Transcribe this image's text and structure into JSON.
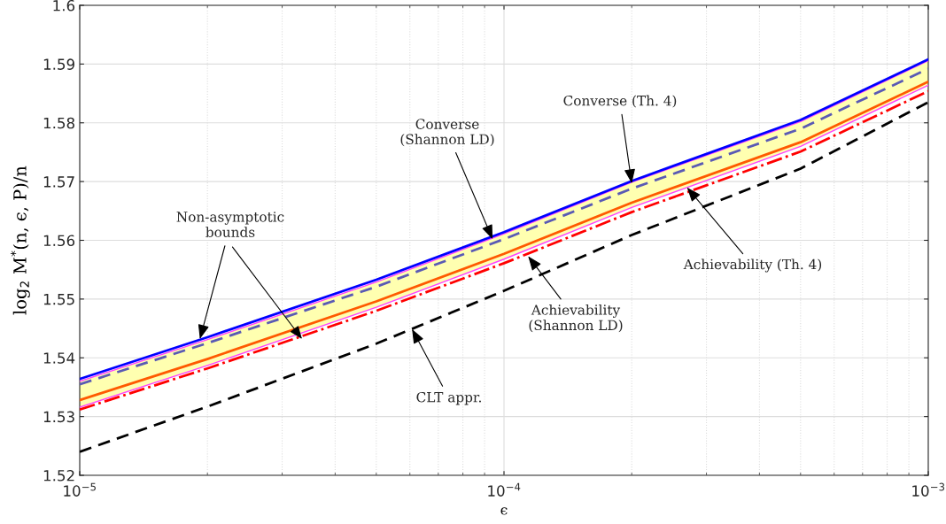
{
  "chart_data": {
    "type": "line",
    "xlabel": "ϵ",
    "ylabel": "log$_{2}$ M$^{*}$(n, ϵ, P)/n",
    "log": "x",
    "grid": true,
    "xlim": [
      1e-05,
      0.001
    ],
    "xticks": [
      {
        "value": 1e-05,
        "label": "10$^{−5}$"
      },
      {
        "value": 0.0001,
        "label": "10$^{−4}$"
      },
      {
        "value": 0.001,
        "label": "10$^{−3}$"
      }
    ],
    "ylim": [
      1.52,
      1.6
    ],
    "yticks": [
      1.52,
      1.53,
      1.54,
      1.55,
      1.56,
      1.57,
      1.58,
      1.59,
      1.6
    ],
    "x": [
      1e-05,
      2e-05,
      5e-05,
      0.0001,
      0.0002,
      0.0005,
      0.001
    ],
    "series": [
      {
        "color": "#ff40ff",
        "line_style": "solid",
        "values": [
          1.536,
          1.5431,
          1.5529,
          1.5611,
          1.5699,
          1.5802,
          1.5906
        ]
      },
      {
        "color": "#ff40ff",
        "line_style": "solid",
        "values": [
          1.5316,
          1.5387,
          1.5486,
          1.5568,
          1.5656,
          1.576,
          1.5864
        ]
      },
      {
        "color": "#0000ff",
        "line_style": "solid",
        "values": [
          1.5364,
          1.5435,
          1.5533,
          1.5614,
          1.5701,
          1.5805,
          1.5908
        ]
      },
      {
        "color": "#5a5ab4",
        "line_style": "dashed",
        "values": [
          1.5355,
          1.5425,
          1.5521,
          1.5602,
          1.5688,
          1.579,
          1.5892
        ]
      },
      {
        "color": "#ff5a00",
        "line_style": "solid",
        "values": [
          1.5328,
          1.5398,
          1.5496,
          1.5577,
          1.5664,
          1.5767,
          1.587
        ],
        "lower": [
          1.5316,
          1.5387,
          1.5486,
          1.5568,
          1.5656,
          1.576,
          1.5864
        ],
        "upper": [
          1.536,
          1.5431,
          1.5529,
          1.5611,
          1.5699,
          1.5802,
          1.5906
        ]
      },
      {
        "color": "#ff0000",
        "line_style": "dashdot",
        "values": [
          1.5312,
          1.5382,
          1.548,
          1.5561,
          1.5648,
          1.5751,
          1.5854
        ]
      },
      {
        "color": "#000000",
        "line_style": "dashed",
        "values": [
          1.524,
          1.5317,
          1.5424,
          1.5514,
          1.5609,
          1.5722,
          1.5835
        ]
      }
    ],
    "annotations": [
      {
        "text": "Non-asymptotic\nbounds",
        "x": 1.92e-05,
        "y": 1.5432
      },
      {
        "text": "Converse\n(Shannon LD)",
        "x": 9.4e-05,
        "y": 1.5602
      },
      {
        "text": "Converse (Th. 4)",
        "x": 0.0002,
        "y": 1.5697
      },
      {
        "text": "Achievability (Th. 4)",
        "x": 0.00027,
        "y": 1.569
      },
      {
        "text": "Achievability\n(Shannon LD)",
        "x": 0.000114,
        "y": 1.5573
      },
      {
        "text": "CLT appr.",
        "x": 6.07e-05,
        "y": 1.5449
      }
    ]
  }
}
